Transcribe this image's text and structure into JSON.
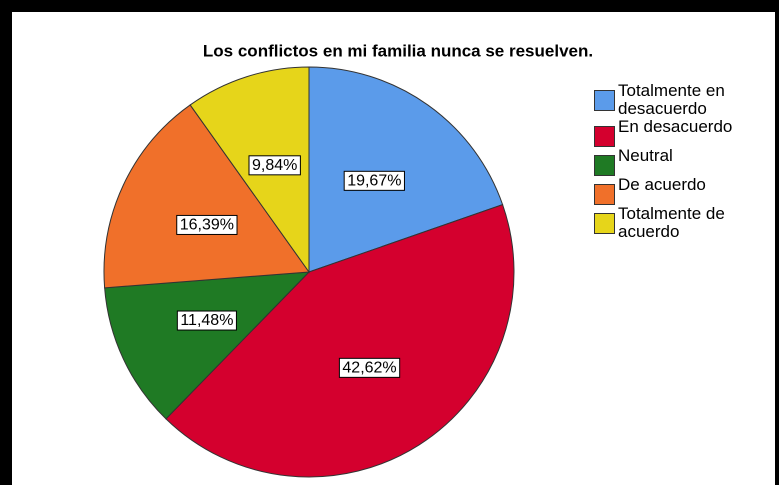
{
  "chart_data": {
    "type": "pie",
    "title": "Los conflictos en mi familia nunca se resuelven.",
    "categories": [
      "Totalmente en desacuerdo",
      "En desacuerdo",
      "Neutral",
      "De acuerdo",
      "Totalmente de acuerdo"
    ],
    "values": [
      19.67,
      42.62,
      11.48,
      16.39,
      9.84
    ],
    "value_labels": [
      "19,67%",
      "42,62%",
      "11,48%",
      "16,39%",
      "9,84%"
    ],
    "colors": [
      "#5b9bea",
      "#d4002e",
      "#1f7a24",
      "#f0702a",
      "#e6d51a"
    ],
    "legend": "right"
  }
}
